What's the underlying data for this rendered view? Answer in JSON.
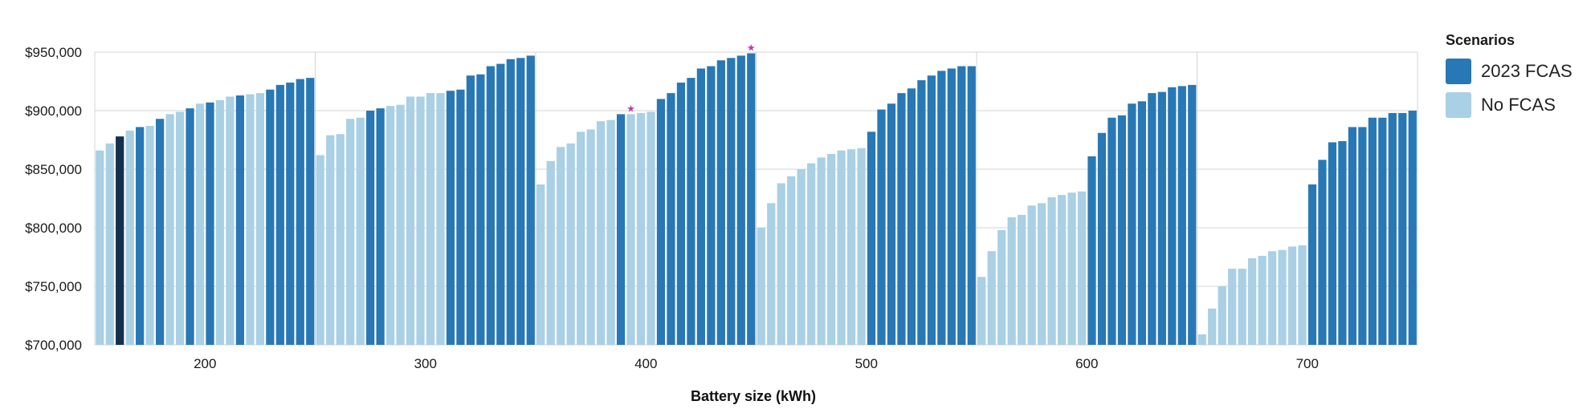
{
  "chart_data": {
    "type": "bar",
    "xlabel": "Battery size (kWh)",
    "ylabel": "",
    "xlim": [
      150,
      750
    ],
    "ylim": [
      700000,
      950000
    ],
    "x_ticks": [
      200,
      300,
      400,
      500,
      600,
      700
    ],
    "x_tick_labels": [
      "200",
      "300",
      "400",
      "500",
      "600",
      "700"
    ],
    "y_ticks": [
      700000,
      750000,
      800000,
      850000,
      900000,
      950000
    ],
    "y_tick_labels": [
      "$700,000",
      "$750,000",
      "$800,000",
      "$850,000",
      "$900,000",
      "$950,000"
    ],
    "grid": true,
    "legend": {
      "title": "Scenarios",
      "placement": "right",
      "entries": [
        {
          "label": "2023 FCAS",
          "color": "#2878b5"
        },
        {
          "label": "No FCAS",
          "color": "#a9d0e4"
        }
      ]
    },
    "colors": {
      "fcas": "#2878b5",
      "no_fcas": "#a9d0e4",
      "highlight": "#13304e",
      "star": "#c03ab0"
    },
    "groups": [
      {
        "values": [
          866000,
          872000,
          878000,
          883000,
          886000,
          887000,
          893000,
          897000,
          899000,
          902000,
          906000,
          907000,
          909000,
          912000,
          913000,
          914000,
          915000,
          918000,
          922000,
          924000,
          927000,
          928000
        ],
        "types": [
          "nofcas",
          "nofcas",
          "highlight",
          "nofcas",
          "fcas",
          "nofcas",
          "fcas",
          "nofcas",
          "nofcas",
          "fcas",
          "nofcas",
          "fcas",
          "nofcas",
          "nofcas",
          "fcas",
          "nofcas",
          "nofcas",
          "fcas",
          "fcas",
          "fcas",
          "fcas",
          "fcas"
        ]
      },
      {
        "values": [
          862000,
          879000,
          880000,
          893000,
          894000,
          900000,
          902000,
          904000,
          905000,
          912000,
          912000,
          915000,
          915000,
          917000,
          918000,
          930000,
          931000,
          938000,
          940000,
          944000,
          945000,
          947000
        ],
        "types": [
          "nofcas",
          "nofcas",
          "nofcas",
          "nofcas",
          "nofcas",
          "fcas",
          "fcas",
          "nofcas",
          "nofcas",
          "nofcas",
          "nofcas",
          "nofcas",
          "nofcas",
          "fcas",
          "fcas",
          "fcas",
          "fcas",
          "fcas",
          "fcas",
          "fcas",
          "fcas",
          "fcas"
        ]
      },
      {
        "values": [
          837000,
          857000,
          869000,
          872000,
          882000,
          884000,
          891000,
          892000,
          897000,
          897000,
          898000,
          899000,
          910000,
          915000,
          924000,
          928000,
          936000,
          938000,
          943000,
          945000,
          947000,
          949000
        ],
        "types": [
          "nofcas",
          "nofcas",
          "nofcas",
          "nofcas",
          "nofcas",
          "nofcas",
          "nofcas",
          "nofcas",
          "fcas",
          "nofcas",
          "nofcas",
          "nofcas",
          "fcas",
          "fcas",
          "fcas",
          "fcas",
          "fcas",
          "fcas",
          "fcas",
          "fcas",
          "fcas",
          "fcas"
        ]
      },
      {
        "values": [
          800000,
          821000,
          838000,
          844000,
          850000,
          855000,
          860000,
          863000,
          866000,
          867000,
          868000,
          882000,
          901000,
          906000,
          915000,
          919000,
          926000,
          930000,
          934000,
          936000,
          938000,
          938000
        ],
        "types": [
          "nofcas",
          "nofcas",
          "nofcas",
          "nofcas",
          "nofcas",
          "nofcas",
          "nofcas",
          "nofcas",
          "nofcas",
          "nofcas",
          "nofcas",
          "fcas",
          "fcas",
          "fcas",
          "fcas",
          "fcas",
          "fcas",
          "fcas",
          "fcas",
          "fcas",
          "fcas",
          "fcas"
        ]
      },
      {
        "values": [
          758000,
          780000,
          798000,
          809000,
          811000,
          819000,
          821000,
          826000,
          828000,
          830000,
          831000,
          861000,
          881000,
          894000,
          896000,
          906000,
          908000,
          915000,
          916000,
          920000,
          921000,
          922000
        ],
        "types": [
          "nofcas",
          "nofcas",
          "nofcas",
          "nofcas",
          "nofcas",
          "nofcas",
          "nofcas",
          "nofcas",
          "nofcas",
          "nofcas",
          "nofcas",
          "fcas",
          "fcas",
          "fcas",
          "fcas",
          "fcas",
          "fcas",
          "fcas",
          "fcas",
          "fcas",
          "fcas",
          "fcas"
        ]
      },
      {
        "values": [
          709000,
          731000,
          750000,
          765000,
          765000,
          774000,
          776000,
          780000,
          781000,
          784000,
          785000,
          837000,
          858000,
          873000,
          874000,
          886000,
          886000,
          894000,
          894000,
          898000,
          898000,
          900000
        ],
        "types": [
          "nofcas",
          "nofcas",
          "nofcas",
          "nofcas",
          "nofcas",
          "nofcas",
          "nofcas",
          "nofcas",
          "nofcas",
          "nofcas",
          "nofcas",
          "fcas",
          "fcas",
          "fcas",
          "fcas",
          "fcas",
          "fcas",
          "fcas",
          "fcas",
          "fcas",
          "fcas",
          "fcas"
        ]
      }
    ],
    "markers": [
      {
        "group": 2,
        "index": 9,
        "symbol": "★"
      },
      {
        "group": 2,
        "index": 21,
        "symbol": "★"
      }
    ]
  }
}
